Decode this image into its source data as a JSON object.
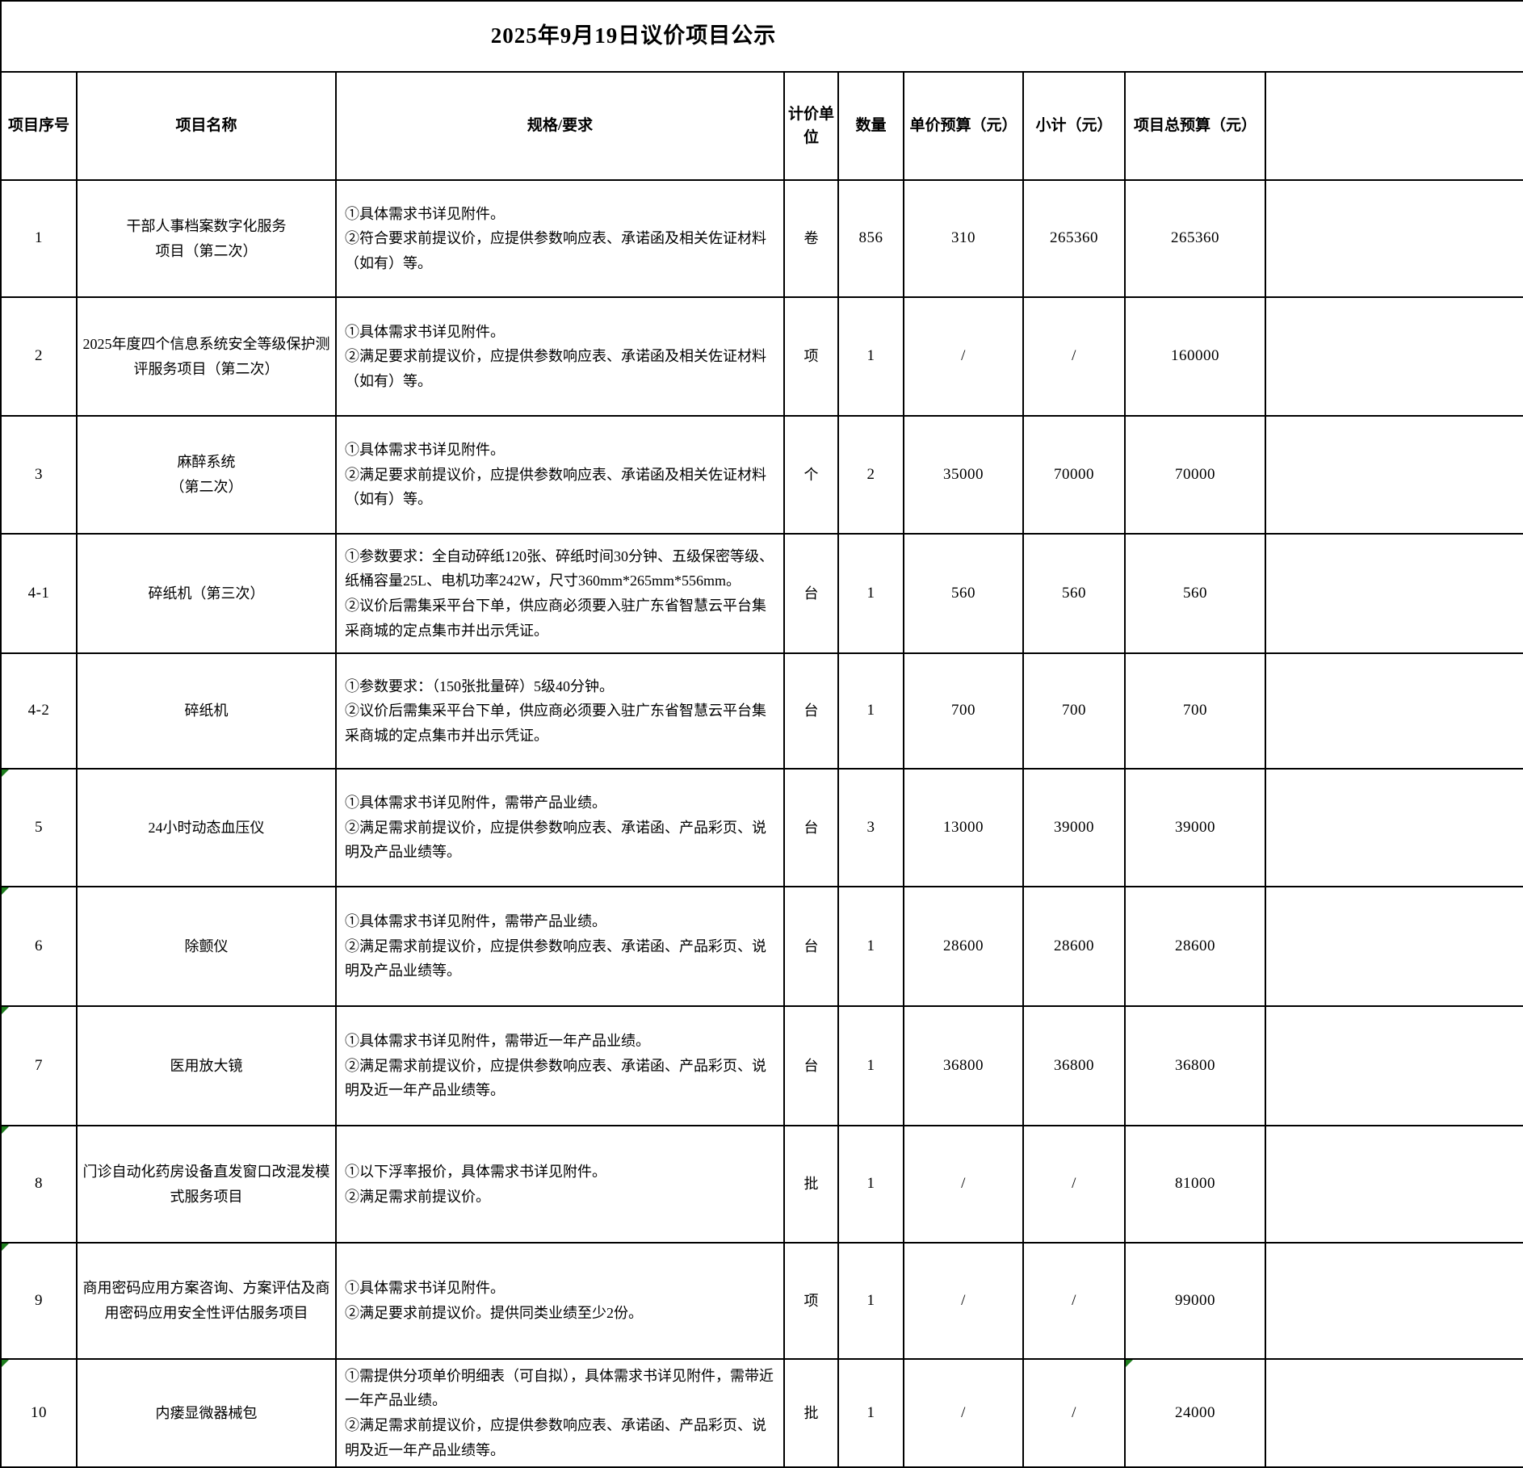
{
  "title": "2025年9月19日议价项目公示",
  "columns": [
    "项目序号",
    "项目名称",
    "规格/要求",
    "计价单位",
    "数量",
    "单价预算（元）",
    "小计（元）",
    "项目总预算（元）"
  ],
  "indicator_color": "#1e7e1e",
  "rows": [
    {
      "seq": "1",
      "name": "干部人事档案数字化服务\n项目（第二次）",
      "spec": "①具体需求书详见附件。\n②符合要求前提议价，应提供参数响应表、承诺函及相关佐证材料（如有）等。",
      "unit": "卷",
      "qty": "856",
      "unit_price": "310",
      "subtotal": "265360",
      "total": "265360",
      "seq_marker": false,
      "total_marker": false
    },
    {
      "seq": "2",
      "name": "2025年度四个信息系统安全等级保护测评服务项目（第二次）",
      "spec": "①具体需求书详见附件。\n②满足要求前提议价，应提供参数响应表、承诺函及相关佐证材料（如有）等。",
      "unit": "项",
      "qty": "1",
      "unit_price": "/",
      "subtotal": "/",
      "total": "160000",
      "seq_marker": false,
      "total_marker": false
    },
    {
      "seq": "3",
      "name": "麻醉系统\n（第二次）",
      "spec": "①具体需求书详见附件。\n②满足要求前提议价，应提供参数响应表、承诺函及相关佐证材料（如有）等。",
      "unit": "个",
      "qty": "2",
      "unit_price": "35000",
      "subtotal": "70000",
      "total": "70000",
      "seq_marker": false,
      "total_marker": false
    },
    {
      "seq": "4-1",
      "name": "碎纸机（第三次）",
      "spec": "①参数要求：全自动碎纸120张、碎纸时间30分钟、五级保密等级、纸桶容量25L、电机功率242W，尺寸360mm*265mm*556mm。\n②议价后需集采平台下单，供应商必须要入驻广东省智慧云平台集采商城的定点集市并出示凭证。",
      "unit": "台",
      "qty": "1",
      "unit_price": "560",
      "subtotal": "560",
      "total": "560",
      "seq_marker": false,
      "total_marker": false
    },
    {
      "seq": "4-2",
      "name": "碎纸机",
      "spec": "①参数要求：（150张批量碎）5级40分钟。\n②议价后需集采平台下单，供应商必须要入驻广东省智慧云平台集采商城的定点集市并出示凭证。",
      "unit": "台",
      "qty": "1",
      "unit_price": "700",
      "subtotal": "700",
      "total": "700",
      "seq_marker": false,
      "total_marker": false
    },
    {
      "seq": "5",
      "name": "24小时动态血压仪",
      "spec": "①具体需求书详见附件，需带产品业绩。\n②满足需求前提议价，应提供参数响应表、承诺函、产品彩页、说明及产品业绩等。",
      "unit": "台",
      "qty": "3",
      "unit_price": "13000",
      "subtotal": "39000",
      "total": "39000",
      "seq_marker": true,
      "total_marker": false
    },
    {
      "seq": "6",
      "name": "除颤仪",
      "spec": "①具体需求书详见附件，需带产品业绩。\n②满足需求前提议价，应提供参数响应表、承诺函、产品彩页、说明及产品业绩等。",
      "unit": "台",
      "qty": "1",
      "unit_price": "28600",
      "subtotal": "28600",
      "total": "28600",
      "seq_marker": true,
      "total_marker": false
    },
    {
      "seq": "7",
      "name": "医用放大镜",
      "spec": "①具体需求书详见附件，需带近一年产品业绩。\n②满足需求前提议价，应提供参数响应表、承诺函、产品彩页、说明及近一年产品业绩等。",
      "unit": "台",
      "qty": "1",
      "unit_price": "36800",
      "subtotal": "36800",
      "total": "36800",
      "seq_marker": true,
      "total_marker": false
    },
    {
      "seq": "8",
      "name": "门诊自动化药房设备直发窗口改混发模式服务项目",
      "spec": "①以下浮率报价，具体需求书详见附件。\n②满足需求前提议价。",
      "unit": "批",
      "qty": "1",
      "unit_price": "/",
      "subtotal": "/",
      "total": "81000",
      "seq_marker": true,
      "total_marker": false
    },
    {
      "seq": "9",
      "name": "商用密码应用方案咨询、方案评估及商用密码应用安全性评估服务项目",
      "spec": "①具体需求书详见附件。\n②满足要求前提议价。提供同类业绩至少2份。",
      "unit": "项",
      "qty": "1",
      "unit_price": "/",
      "subtotal": "/",
      "total": "99000",
      "seq_marker": true,
      "total_marker": false
    },
    {
      "seq": "10",
      "name": "内瘘显微器械包",
      "spec": "①需提供分项单价明细表（可自拟），具体需求书详见附件，需带近一年产品业绩。\n②满足需求前提议价，应提供参数响应表、承诺函、产品彩页、说明及近一年产品业绩等。",
      "unit": "批",
      "qty": "1",
      "unit_price": "/",
      "subtotal": "/",
      "total": "24000",
      "seq_marker": true,
      "total_marker": true
    }
  ]
}
